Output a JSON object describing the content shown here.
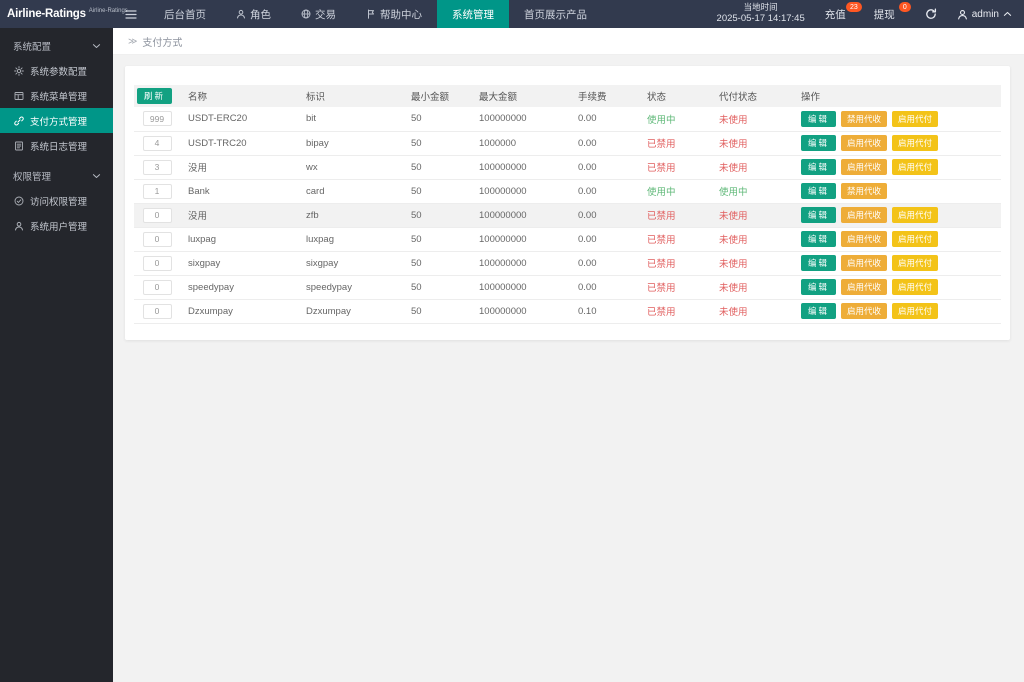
{
  "header": {
    "logo": "Airline-Ratings",
    "logo_badge": "Airline-Ratings",
    "nav": [
      {
        "label": "后台首页"
      },
      {
        "label": "角色",
        "icon": "user"
      },
      {
        "label": "交易",
        "icon": "globe"
      },
      {
        "label": "帮助中心",
        "icon": "flag"
      },
      {
        "label": "系统管理",
        "active": true
      },
      {
        "label": "首页展示产品"
      }
    ],
    "time_label": "当地时间",
    "time_value": "2025-05-17 14:17:45",
    "recharge_label": "充值",
    "recharge_badge": "23",
    "withdraw_label": "提现",
    "withdraw_badge": "0",
    "username": "admin"
  },
  "sidebar": {
    "groups": [
      {
        "label": "系统配置",
        "items": [
          {
            "icon": "gear",
            "label": "系统参数配置"
          },
          {
            "icon": "windowpane",
            "label": "系统菜单管理"
          },
          {
            "icon": "link",
            "label": "支付方式管理",
            "active": true
          },
          {
            "icon": "doc",
            "label": "系统日志管理"
          }
        ]
      },
      {
        "label": "权限管理",
        "items": [
          {
            "icon": "check-circle",
            "label": "访问权限管理"
          },
          {
            "icon": "user",
            "label": "系统用户管理"
          }
        ]
      }
    ]
  },
  "breadcrumb": {
    "icon": "≫",
    "label": "支付方式"
  },
  "table": {
    "refresh_label": "刷新",
    "columns": [
      "名称",
      "标识",
      "最小金额",
      "最大金额",
      "手续费",
      "状态",
      "代付状态",
      "操作"
    ],
    "rows": [
      {
        "sort": "999",
        "name": "USDT-ERC20",
        "ident": "bit",
        "min": "50",
        "max": "100000000",
        "fee": "0.00",
        "status": "使用中",
        "status_on": true,
        "payout": "未使用",
        "payout_on": false,
        "actions": [
          {
            "label": "编辑",
            "type": "edit"
          },
          {
            "label": "禁用代收",
            "type": "amber"
          },
          {
            "label": "启用代付",
            "type": "yellow"
          }
        ]
      },
      {
        "sort": "4",
        "name": "USDT-TRC20",
        "ident": "bipay",
        "min": "50",
        "max": "1000000",
        "fee": "0.00",
        "status": "已禁用",
        "status_on": false,
        "payout": "未使用",
        "payout_on": false,
        "actions": [
          {
            "label": "编辑",
            "type": "edit"
          },
          {
            "label": "启用代收",
            "type": "amber"
          },
          {
            "label": "启用代付",
            "type": "yellow"
          }
        ]
      },
      {
        "sort": "3",
        "name": "没用",
        "ident": "wx",
        "min": "50",
        "max": "100000000",
        "fee": "0.00",
        "status": "已禁用",
        "status_on": false,
        "payout": "未使用",
        "payout_on": false,
        "actions": [
          {
            "label": "编辑",
            "type": "edit"
          },
          {
            "label": "启用代收",
            "type": "amber"
          },
          {
            "label": "启用代付",
            "type": "yellow"
          }
        ]
      },
      {
        "sort": "1",
        "name": "Bank",
        "ident": "card",
        "min": "50",
        "max": "100000000",
        "fee": "0.00",
        "status": "使用中",
        "status_on": true,
        "payout": "使用中",
        "payout_on": true,
        "actions": [
          {
            "label": "编辑",
            "type": "edit"
          },
          {
            "label": "禁用代收",
            "type": "amber"
          }
        ]
      },
      {
        "sort": "0",
        "name": "没用",
        "ident": "zfb",
        "min": "50",
        "max": "100000000",
        "fee": "0.00",
        "status": "已禁用",
        "status_on": false,
        "payout": "未使用",
        "payout_on": false,
        "highlight": true,
        "actions": [
          {
            "label": "编辑",
            "type": "edit"
          },
          {
            "label": "启用代收",
            "type": "amber"
          },
          {
            "label": "启用代付",
            "type": "yellow"
          }
        ]
      },
      {
        "sort": "0",
        "name": "luxpag",
        "ident": "luxpag",
        "min": "50",
        "max": "100000000",
        "fee": "0.00",
        "status": "已禁用",
        "status_on": false,
        "payout": "未使用",
        "payout_on": false,
        "actions": [
          {
            "label": "编辑",
            "type": "edit"
          },
          {
            "label": "启用代收",
            "type": "amber"
          },
          {
            "label": "启用代付",
            "type": "yellow"
          }
        ]
      },
      {
        "sort": "0",
        "name": "sixgpay",
        "ident": "sixgpay",
        "min": "50",
        "max": "100000000",
        "fee": "0.00",
        "status": "已禁用",
        "status_on": false,
        "payout": "未使用",
        "payout_on": false,
        "actions": [
          {
            "label": "编辑",
            "type": "edit"
          },
          {
            "label": "启用代收",
            "type": "amber"
          },
          {
            "label": "启用代付",
            "type": "yellow"
          }
        ]
      },
      {
        "sort": "0",
        "name": "speedypay",
        "ident": "speedypay",
        "min": "50",
        "max": "100000000",
        "fee": "0.00",
        "status": "已禁用",
        "status_on": false,
        "payout": "未使用",
        "payout_on": false,
        "actions": [
          {
            "label": "编辑",
            "type": "edit"
          },
          {
            "label": "启用代收",
            "type": "amber"
          },
          {
            "label": "启用代付",
            "type": "yellow"
          }
        ]
      },
      {
        "sort": "0",
        "name": "Dzxumpay",
        "ident": "Dzxumpay",
        "min": "50",
        "max": "100000000",
        "fee": "0.10",
        "status": "已禁用",
        "status_on": false,
        "payout": "未使用",
        "payout_on": false,
        "actions": [
          {
            "label": "编辑",
            "type": "edit"
          },
          {
            "label": "启用代收",
            "type": "amber"
          },
          {
            "label": "启用代付",
            "type": "yellow"
          }
        ]
      }
    ]
  },
  "colors": {
    "accent": "#009688",
    "button_green": "#12a182",
    "status_green": "#5fb878",
    "status_red": "#e15f5f",
    "amber": "#eead38",
    "yellow": "#f3c318",
    "badge": "#ff5722",
    "header_bg": "#323a4e",
    "sidebar_bg": "#24262c"
  }
}
